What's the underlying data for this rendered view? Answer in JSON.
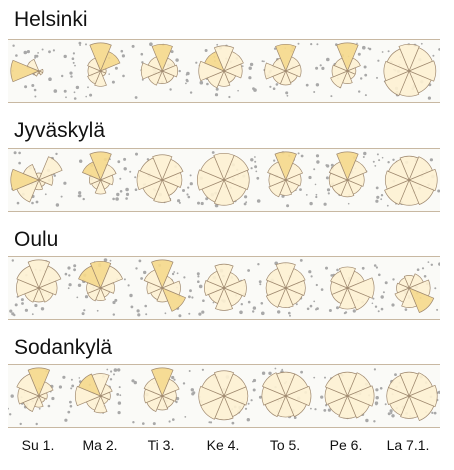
{
  "days": [
    "Su 1.",
    "Ma 2.",
    "Ti 3.",
    "Ke 4.",
    "To 5.",
    "Pe 6.",
    "La 7.1."
  ],
  "colors": {
    "dark_wedge": "#f5d98c",
    "light_wedge": "#fdf1d2",
    "wedge_stroke": "#a08a70",
    "rain_dot": "#a8a8a8",
    "band_border": "#c8b8a2"
  },
  "cities": [
    {
      "name": "Helsinki",
      "roses": [
        {
          "sectors": [
            0.0,
            0.0,
            0.15,
            0.15,
            0.1,
            0.2,
            1.0,
            0.45
          ],
          "dark": [
            6
          ]
        },
        {
          "sectors": [
            1.0,
            0.75,
            0.2,
            0.2,
            0.55,
            0.5,
            0.45,
            0.5
          ],
          "dark": [
            0,
            1
          ]
        },
        {
          "sectors": [
            0.95,
            0.5,
            0.55,
            0.45,
            0.45,
            0.55,
            0.75,
            0.55
          ],
          "dark": [
            0
          ]
        },
        {
          "sectors": [
            0.9,
            0.75,
            0.65,
            0.45,
            0.55,
            0.65,
            0.9,
            0.75
          ],
          "dark": [
            7
          ]
        },
        {
          "sectors": [
            0.95,
            0.55,
            0.55,
            0.45,
            0.5,
            0.5,
            0.75,
            0.5
          ],
          "dark": [
            0
          ]
        },
        {
          "sectors": [
            1.0,
            0.5,
            0.3,
            0.3,
            0.45,
            0.65,
            0.55,
            0.5
          ],
          "dark": [
            0
          ]
        },
        {
          "sectors": [
            0.95,
            0.9,
            0.95,
            0.85,
            0.9,
            0.95,
            0.9,
            0.85
          ],
          "dark": []
        }
      ]
    },
    {
      "name": "Jyväskylä",
      "roses": [
        {
          "sectors": [
            0.25,
            0.9,
            0.5,
            0.25,
            0.35,
            0.85,
            1.0,
            0.6
          ],
          "dark": [
            6
          ]
        },
        {
          "sectors": [
            1.0,
            0.6,
            0.45,
            0.35,
            0.5,
            0.35,
            0.4,
            0.7
          ],
          "dark": [
            0,
            7
          ]
        },
        {
          "sectors": [
            0.9,
            0.8,
            0.7,
            0.6,
            0.8,
            0.75,
            0.9,
            0.85
          ],
          "dark": []
        },
        {
          "sectors": [
            0.95,
            0.95,
            0.9,
            0.85,
            0.9,
            0.85,
            0.95,
            0.9
          ],
          "dark": []
        },
        {
          "sectors": [
            1.0,
            0.65,
            0.55,
            0.5,
            0.55,
            0.65,
            0.6,
            0.7
          ],
          "dark": [
            0
          ]
        },
        {
          "sectors": [
            1.0,
            0.75,
            0.6,
            0.55,
            0.6,
            0.6,
            0.65,
            0.7
          ],
          "dark": [
            0
          ]
        },
        {
          "sectors": [
            0.85,
            0.9,
            1.0,
            0.95,
            0.9,
            0.95,
            0.85,
            0.8
          ],
          "dark": []
        }
      ]
    },
    {
      "name": "Oulu",
      "roses": [
        {
          "sectors": [
            1.0,
            0.85,
            0.65,
            0.55,
            0.5,
            0.55,
            0.8,
            0.85
          ],
          "dark": []
        },
        {
          "sectors": [
            0.95,
            0.85,
            0.5,
            0.35,
            0.45,
            0.5,
            0.5,
            0.85
          ],
          "dark": [
            0,
            7
          ]
        },
        {
          "sectors": [
            1.0,
            0.45,
            0.65,
            0.9,
            0.5,
            0.45,
            0.55,
            0.7
          ],
          "dark": [
            0,
            3
          ]
        },
        {
          "sectors": [
            0.85,
            0.6,
            0.8,
            0.7,
            0.8,
            0.6,
            0.7,
            0.65
          ],
          "dark": []
        },
        {
          "sectors": [
            0.9,
            0.75,
            0.7,
            0.65,
            0.7,
            0.75,
            0.7,
            0.75
          ],
          "dark": []
        },
        {
          "sectors": [
            0.75,
            0.65,
            0.95,
            0.85,
            0.75,
            0.6,
            0.6,
            0.65
          ],
          "dark": []
        },
        {
          "sectors": [
            0.45,
            0.55,
            0.75,
            0.95,
            0.7,
            0.55,
            0.45,
            0.4
          ],
          "dark": [
            3
          ]
        }
      ]
    },
    {
      "name": "Sodankylä",
      "roses": [
        {
          "sectors": [
            1.0,
            0.55,
            0.3,
            0.25,
            0.4,
            0.6,
            0.75,
            0.85
          ],
          "dark": [
            0
          ]
        },
        {
          "sectors": [
            0.8,
            0.45,
            0.35,
            0.3,
            0.6,
            0.55,
            0.9,
            0.85
          ],
          "dark": [
            7
          ]
        },
        {
          "sectors": [
            1.0,
            0.65,
            0.5,
            0.45,
            0.5,
            0.6,
            0.65,
            0.7
          ],
          "dark": [
            0
          ]
        },
        {
          "sectors": [
            0.9,
            0.85,
            0.85,
            0.8,
            0.85,
            0.9,
            0.9,
            0.85
          ],
          "dark": []
        },
        {
          "sectors": [
            0.85,
            0.85,
            0.9,
            0.8,
            0.75,
            0.8,
            0.85,
            0.9
          ],
          "dark": []
        },
        {
          "sectors": [
            0.85,
            0.9,
            0.95,
            0.85,
            0.8,
            0.75,
            0.8,
            0.85
          ],
          "dark": []
        },
        {
          "sectors": [
            0.85,
            0.9,
            1.0,
            0.95,
            0.8,
            0.75,
            0.8,
            0.8
          ],
          "dark": []
        }
      ]
    }
  ]
}
